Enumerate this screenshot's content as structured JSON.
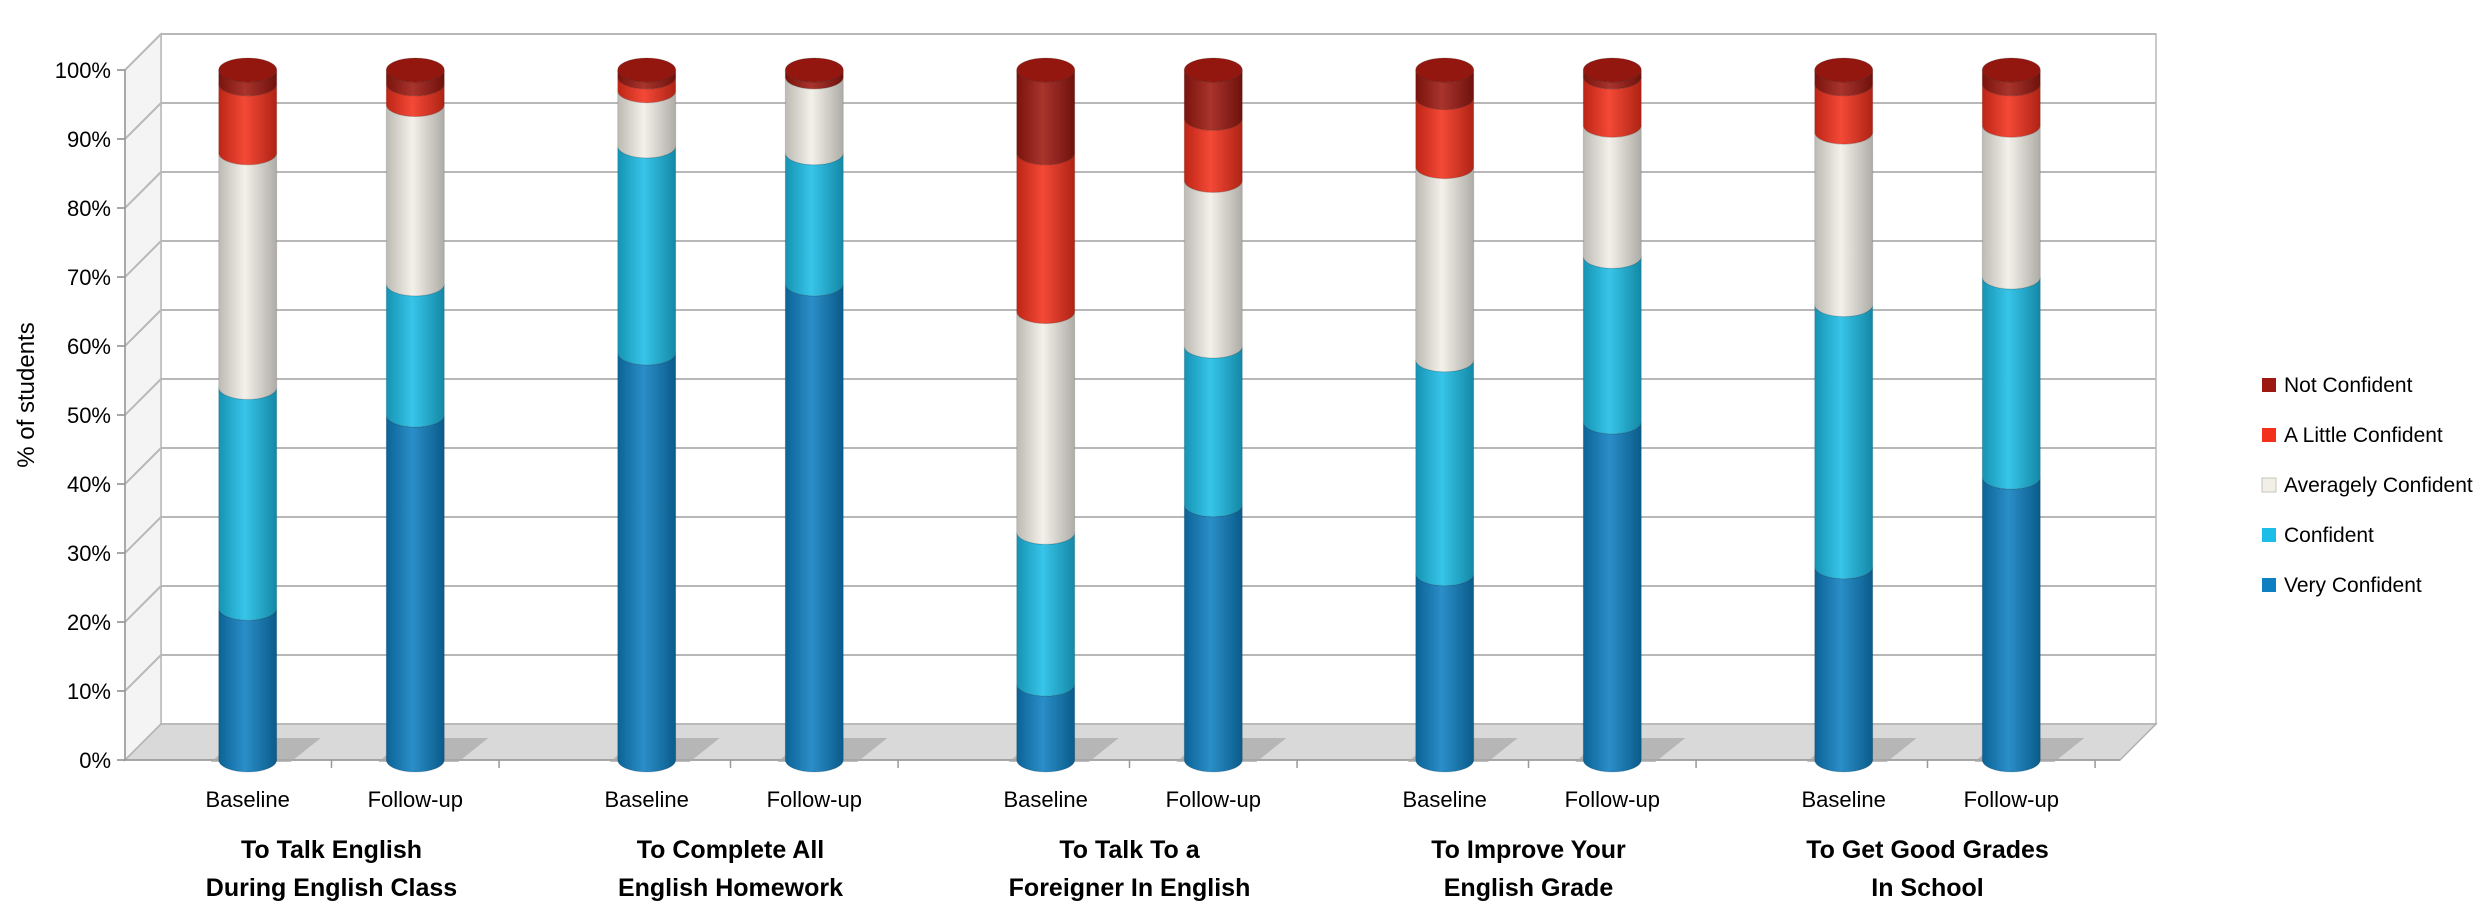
{
  "chart_data": {
    "type": "bar",
    "stacked": true,
    "title": "",
    "ylabel": "% of students",
    "xlabel": "",
    "ylim": [
      0,
      100
    ],
    "yticks": [
      "0%",
      "10%",
      "20%",
      "30%",
      "40%",
      "50%",
      "60%",
      "70%",
      "80%",
      "90%",
      "100%"
    ],
    "grid": true,
    "legend_position": "right",
    "groups": [
      {
        "label": [
          "To Talk English",
          "During English Class"
        ],
        "bars": [
          {
            "label": "Baseline",
            "values": [
              22,
              32,
              34,
              10,
              2
            ]
          },
          {
            "label": "Follow-up",
            "values": [
              50,
              19,
              26,
              3,
              2
            ]
          }
        ]
      },
      {
        "label": [
          "To Complete All",
          "English Homework"
        ],
        "bars": [
          {
            "label": "Baseline",
            "values": [
              59,
              30,
              8,
              2,
              1
            ]
          },
          {
            "label": "Follow-up",
            "values": [
              69,
              19,
              11,
              0,
              1
            ]
          }
        ]
      },
      {
        "label": [
          "To Talk To a",
          "Foreigner In English"
        ],
        "bars": [
          {
            "label": "Baseline",
            "values": [
              11,
              22,
              32,
              23,
              12
            ]
          },
          {
            "label": "Follow-up",
            "values": [
              37,
              23,
              24,
              9,
              7
            ]
          }
        ]
      },
      {
        "label": [
          "To Improve Your",
          "English Grade"
        ],
        "bars": [
          {
            "label": "Baseline",
            "values": [
              27,
              31,
              28,
              10,
              4
            ]
          },
          {
            "label": "Follow-up",
            "values": [
              49,
              24,
              19,
              7,
              1
            ]
          }
        ]
      },
      {
        "label": [
          "To Get Good Grades",
          "In School"
        ],
        "bars": [
          {
            "label": "Baseline",
            "values": [
              28,
              38,
              25,
              7,
              2
            ]
          },
          {
            "label": "Follow-up",
            "values": [
              41,
              29,
              22,
              6,
              2
            ]
          }
        ]
      }
    ],
    "series": [
      {
        "name": "Very Confident",
        "color": "#0e7fc0"
      },
      {
        "name": "Confident",
        "color": "#1cbde6"
      },
      {
        "name": "Averagely Confident",
        "color": "#f1efe6"
      },
      {
        "name": "A Little Confident",
        "color": "#f2301c"
      },
      {
        "name": "Not Confident",
        "color": "#9c1810"
      }
    ]
  }
}
